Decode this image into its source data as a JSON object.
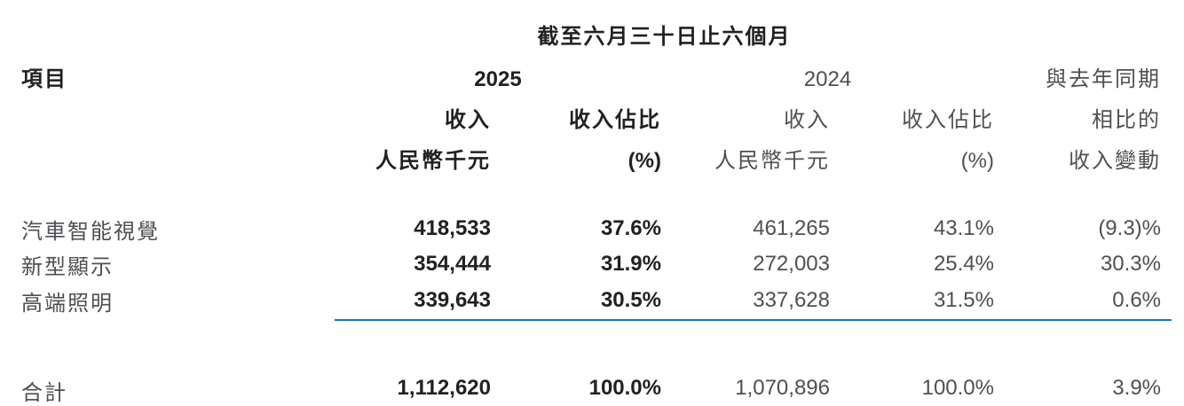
{
  "title": "截至六月三十日止六個月",
  "colors": {
    "thin_rule_blue": "#1b75bc",
    "thick_rule_blue": "#0874c8",
    "bold_text": "#212122",
    "regular_text": "#4e4f53"
  },
  "header": {
    "item_label": "項目",
    "year_2025": "2025",
    "year_2024": "2024",
    "revenue_2025": "收入",
    "revenue_unit_2025": "人民幣千元",
    "share_2025": "收入佔比",
    "share_unit_2025": "(%)",
    "revenue_2024": "收入",
    "revenue_unit_2024": "人民幣千元",
    "share_2024": "收入佔比",
    "share_unit_2024": "(%)",
    "change_line1": "與去年同期",
    "change_line2": "相比的",
    "change_line3": "收入變動"
  },
  "rows": [
    {
      "label": "汽車智能視覺",
      "rev_2025": "418,533",
      "share_2025": "37.6%",
      "rev_2024": "461,265",
      "share_2024": "43.1%",
      "change": "(9.3)%"
    },
    {
      "label": "新型顯示",
      "rev_2025": "354,444",
      "share_2025": "31.9%",
      "rev_2024": "272,003",
      "share_2024": "25.4%",
      "change": "30.3%"
    },
    {
      "label": "高端照明",
      "rev_2025": "339,643",
      "share_2025": "30.5%",
      "rev_2024": "337,628",
      "share_2024": "31.5%",
      "change": "0.6%"
    }
  ],
  "total": {
    "label": "合計",
    "rev_2025": "1,112,620",
    "share_2025": "100.0%",
    "rev_2024": "1,070,896",
    "share_2024": "100.0%",
    "change": "3.9%"
  }
}
